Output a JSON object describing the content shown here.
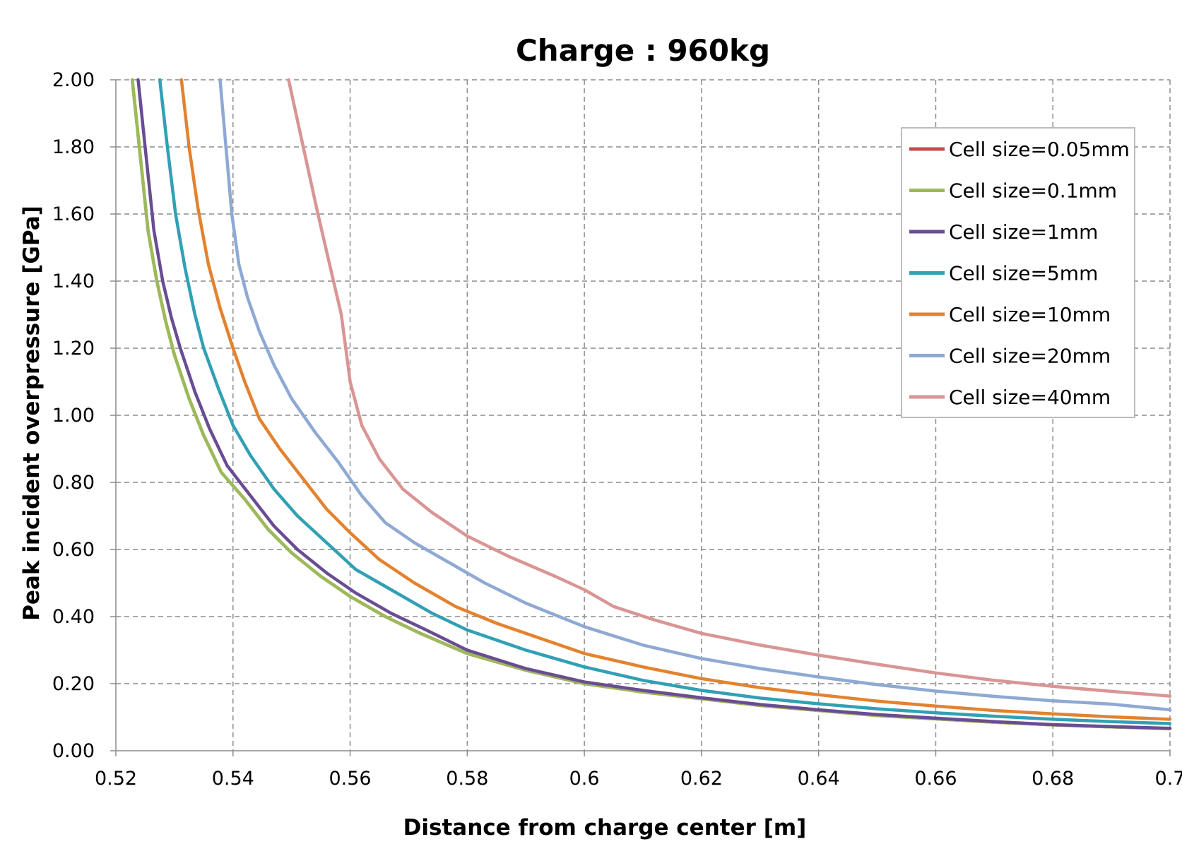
{
  "chart_data": {
    "type": "line",
    "title": "Charge : 960kg",
    "xlabel": "Distance from charge center [m]",
    "ylabel": "Peak incident overpressure [GPa]",
    "xlim": [
      0.52,
      0.7
    ],
    "ylim": [
      0,
      2
    ],
    "x_ticks": [
      "0.52",
      "0.54",
      "0.56",
      "0.58",
      "0.6",
      "0.62",
      "0.64",
      "0.66",
      "0.68",
      "0.7"
    ],
    "y_ticks": [
      "0.00",
      "0.20",
      "0.40",
      "0.60",
      "0.80",
      "1.00",
      "1.20",
      "1.40",
      "1.60",
      "1.80",
      "2.00"
    ],
    "grid": true,
    "legend_position": "top-right",
    "series": [
      {
        "name": "Cell size=0.05mm",
        "color": "#c0504d",
        "points": [
          [
            0.5228,
            2.0
          ],
          [
            0.524,
            1.8
          ],
          [
            0.5255,
            1.55
          ],
          [
            0.527,
            1.4
          ],
          [
            0.5285,
            1.28
          ],
          [
            0.53,
            1.18
          ],
          [
            0.5325,
            1.05
          ],
          [
            0.535,
            0.94
          ],
          [
            0.538,
            0.83
          ],
          [
            0.542,
            0.75
          ],
          [
            0.546,
            0.66
          ],
          [
            0.55,
            0.59
          ],
          [
            0.555,
            0.52
          ],
          [
            0.56,
            0.46
          ],
          [
            0.566,
            0.4
          ],
          [
            0.572,
            0.35
          ],
          [
            0.58,
            0.29
          ],
          [
            0.59,
            0.24
          ],
          [
            0.6,
            0.2
          ],
          [
            0.61,
            0.175
          ],
          [
            0.62,
            0.155
          ],
          [
            0.63,
            0.135
          ],
          [
            0.64,
            0.12
          ],
          [
            0.65,
            0.105
          ],
          [
            0.66,
            0.095
          ],
          [
            0.67,
            0.085
          ],
          [
            0.68,
            0.077
          ],
          [
            0.69,
            0.071
          ],
          [
            0.7,
            0.066
          ]
        ]
      },
      {
        "name": "Cell size=0.1mm",
        "color": "#9bbb59",
        "points": [
          [
            0.5228,
            2.0
          ],
          [
            0.524,
            1.8
          ],
          [
            0.5255,
            1.55
          ],
          [
            0.527,
            1.4
          ],
          [
            0.5285,
            1.28
          ],
          [
            0.53,
            1.18
          ],
          [
            0.5325,
            1.05
          ],
          [
            0.535,
            0.94
          ],
          [
            0.538,
            0.83
          ],
          [
            0.542,
            0.75
          ],
          [
            0.546,
            0.66
          ],
          [
            0.55,
            0.59
          ],
          [
            0.555,
            0.52
          ],
          [
            0.56,
            0.46
          ],
          [
            0.566,
            0.4
          ],
          [
            0.572,
            0.35
          ],
          [
            0.58,
            0.29
          ],
          [
            0.59,
            0.24
          ],
          [
            0.6,
            0.2
          ],
          [
            0.61,
            0.175
          ],
          [
            0.62,
            0.155
          ],
          [
            0.63,
            0.135
          ],
          [
            0.64,
            0.12
          ],
          [
            0.65,
            0.105
          ],
          [
            0.66,
            0.095
          ],
          [
            0.67,
            0.085
          ],
          [
            0.68,
            0.077
          ],
          [
            0.69,
            0.071
          ],
          [
            0.7,
            0.066
          ]
        ]
      },
      {
        "name": "Cell size=1mm",
        "color": "#6a4c93",
        "points": [
          [
            0.5238,
            2.0
          ],
          [
            0.525,
            1.8
          ],
          [
            0.5265,
            1.55
          ],
          [
            0.528,
            1.4
          ],
          [
            0.5295,
            1.29
          ],
          [
            0.531,
            1.2
          ],
          [
            0.5335,
            1.07
          ],
          [
            0.536,
            0.96
          ],
          [
            0.539,
            0.85
          ],
          [
            0.543,
            0.76
          ],
          [
            0.547,
            0.67
          ],
          [
            0.551,
            0.6
          ],
          [
            0.556,
            0.53
          ],
          [
            0.561,
            0.47
          ],
          [
            0.567,
            0.41
          ],
          [
            0.573,
            0.36
          ],
          [
            0.58,
            0.3
          ],
          [
            0.59,
            0.245
          ],
          [
            0.6,
            0.205
          ],
          [
            0.61,
            0.18
          ],
          [
            0.62,
            0.158
          ],
          [
            0.63,
            0.138
          ],
          [
            0.64,
            0.122
          ],
          [
            0.65,
            0.108
          ],
          [
            0.66,
            0.097
          ],
          [
            0.67,
            0.087
          ],
          [
            0.68,
            0.078
          ],
          [
            0.69,
            0.072
          ],
          [
            0.7,
            0.067
          ]
        ]
      },
      {
        "name": "Cell size=5mm",
        "color": "#31a0b4",
        "points": [
          [
            0.5275,
            2.0
          ],
          [
            0.5288,
            1.8
          ],
          [
            0.5302,
            1.6
          ],
          [
            0.5318,
            1.44
          ],
          [
            0.5335,
            1.3
          ],
          [
            0.535,
            1.2
          ],
          [
            0.5375,
            1.08
          ],
          [
            0.54,
            0.97
          ],
          [
            0.543,
            0.88
          ],
          [
            0.547,
            0.78
          ],
          [
            0.551,
            0.7
          ],
          [
            0.556,
            0.62
          ],
          [
            0.561,
            0.54
          ],
          [
            0.567,
            0.48
          ],
          [
            0.574,
            0.41
          ],
          [
            0.58,
            0.36
          ],
          [
            0.59,
            0.3
          ],
          [
            0.6,
            0.25
          ],
          [
            0.61,
            0.21
          ],
          [
            0.62,
            0.18
          ],
          [
            0.63,
            0.157
          ],
          [
            0.64,
            0.14
          ],
          [
            0.65,
            0.125
          ],
          [
            0.66,
            0.113
          ],
          [
            0.67,
            0.103
          ],
          [
            0.68,
            0.094
          ],
          [
            0.69,
            0.087
          ],
          [
            0.7,
            0.081
          ]
        ]
      },
      {
        "name": "Cell size=10mm",
        "color": "#e3822f",
        "points": [
          [
            0.5312,
            2.0
          ],
          [
            0.5325,
            1.8
          ],
          [
            0.534,
            1.62
          ],
          [
            0.5358,
            1.45
          ],
          [
            0.5378,
            1.32
          ],
          [
            0.54,
            1.2
          ],
          [
            0.542,
            1.1
          ],
          [
            0.5445,
            0.99
          ],
          [
            0.548,
            0.9
          ],
          [
            0.552,
            0.81
          ],
          [
            0.556,
            0.72
          ],
          [
            0.56,
            0.65
          ],
          [
            0.565,
            0.57
          ],
          [
            0.571,
            0.5
          ],
          [
            0.578,
            0.43
          ],
          [
            0.585,
            0.38
          ],
          [
            0.59,
            0.35
          ],
          [
            0.6,
            0.29
          ],
          [
            0.61,
            0.25
          ],
          [
            0.62,
            0.215
          ],
          [
            0.63,
            0.188
          ],
          [
            0.64,
            0.167
          ],
          [
            0.65,
            0.148
          ],
          [
            0.66,
            0.133
          ],
          [
            0.67,
            0.12
          ],
          [
            0.68,
            0.11
          ],
          [
            0.69,
            0.101
          ],
          [
            0.7,
            0.094
          ]
        ]
      },
      {
        "name": "Cell size=20mm",
        "color": "#8ea9d3",
        "points": [
          [
            0.5378,
            2.0
          ],
          [
            0.5388,
            1.8
          ],
          [
            0.5398,
            1.6
          ],
          [
            0.541,
            1.45
          ],
          [
            0.5425,
            1.35
          ],
          [
            0.5445,
            1.25
          ],
          [
            0.547,
            1.15
          ],
          [
            0.55,
            1.05
          ],
          [
            0.554,
            0.95
          ],
          [
            0.558,
            0.86
          ],
          [
            0.562,
            0.76
          ],
          [
            0.566,
            0.68
          ],
          [
            0.571,
            0.62
          ],
          [
            0.577,
            0.56
          ],
          [
            0.583,
            0.5
          ],
          [
            0.59,
            0.44
          ],
          [
            0.6,
            0.37
          ],
          [
            0.61,
            0.315
          ],
          [
            0.62,
            0.275
          ],
          [
            0.63,
            0.245
          ],
          [
            0.64,
            0.22
          ],
          [
            0.65,
            0.197
          ],
          [
            0.66,
            0.178
          ],
          [
            0.67,
            0.162
          ],
          [
            0.68,
            0.149
          ],
          [
            0.69,
            0.139
          ],
          [
            0.7,
            0.122
          ]
        ]
      },
      {
        "name": "Cell size=40mm",
        "color": "#d99594",
        "points": [
          [
            0.5495,
            2.0
          ],
          [
            0.552,
            1.8
          ],
          [
            0.5545,
            1.6
          ],
          [
            0.5565,
            1.45
          ],
          [
            0.5585,
            1.3
          ],
          [
            0.56,
            1.1
          ],
          [
            0.562,
            0.97
          ],
          [
            0.565,
            0.87
          ],
          [
            0.569,
            0.78
          ],
          [
            0.574,
            0.71
          ],
          [
            0.58,
            0.64
          ],
          [
            0.587,
            0.58
          ],
          [
            0.595,
            0.52
          ],
          [
            0.6,
            0.48
          ],
          [
            0.605,
            0.43
          ],
          [
            0.612,
            0.39
          ],
          [
            0.62,
            0.35
          ],
          [
            0.63,
            0.315
          ],
          [
            0.64,
            0.285
          ],
          [
            0.65,
            0.258
          ],
          [
            0.66,
            0.232
          ],
          [
            0.67,
            0.21
          ],
          [
            0.68,
            0.192
          ],
          [
            0.69,
            0.177
          ],
          [
            0.7,
            0.163
          ]
        ]
      }
    ]
  }
}
